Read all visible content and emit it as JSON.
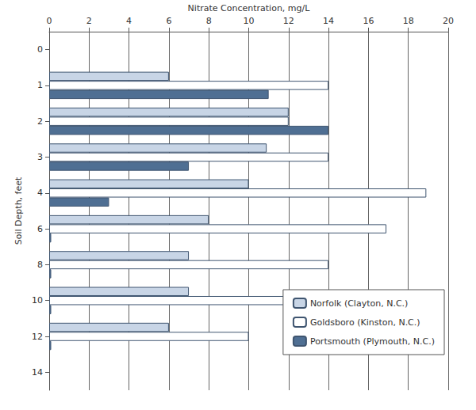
{
  "chart_data": {
    "type": "bar",
    "orientation": "horizontal",
    "xlabel": "Nitrate Concentration, mg/L",
    "ylabel": "Soil Depth, feet",
    "categories": [
      "0",
      "1",
      "2",
      "3",
      "4",
      "6",
      "8",
      "10",
      "12",
      "14"
    ],
    "series": [
      {
        "name": "Norfolk (Clayton, N.C.)",
        "color": "#c8d5e6",
        "values": [
          null,
          6,
          12,
          10.9,
          10,
          8,
          7,
          7,
          6,
          null
        ]
      },
      {
        "name": "Goldsboro (Kinston, N.C.)",
        "color": "#ffffff",
        "values": [
          null,
          14,
          12,
          14,
          18.9,
          16.9,
          14,
          11.9,
          10,
          null
        ]
      },
      {
        "name": "Portsmouth (Plymouth, N.C.)",
        "color": "#4f6f93",
        "values": [
          null,
          11,
          14,
          7,
          3,
          0.1,
          0.1,
          0.1,
          0.1,
          null
        ]
      }
    ],
    "xlim": [
      0,
      20
    ],
    "xticks": [
      0,
      2,
      4,
      6,
      8,
      10,
      12,
      14,
      16,
      18,
      20
    ],
    "grid": true,
    "legend": "lower right"
  }
}
